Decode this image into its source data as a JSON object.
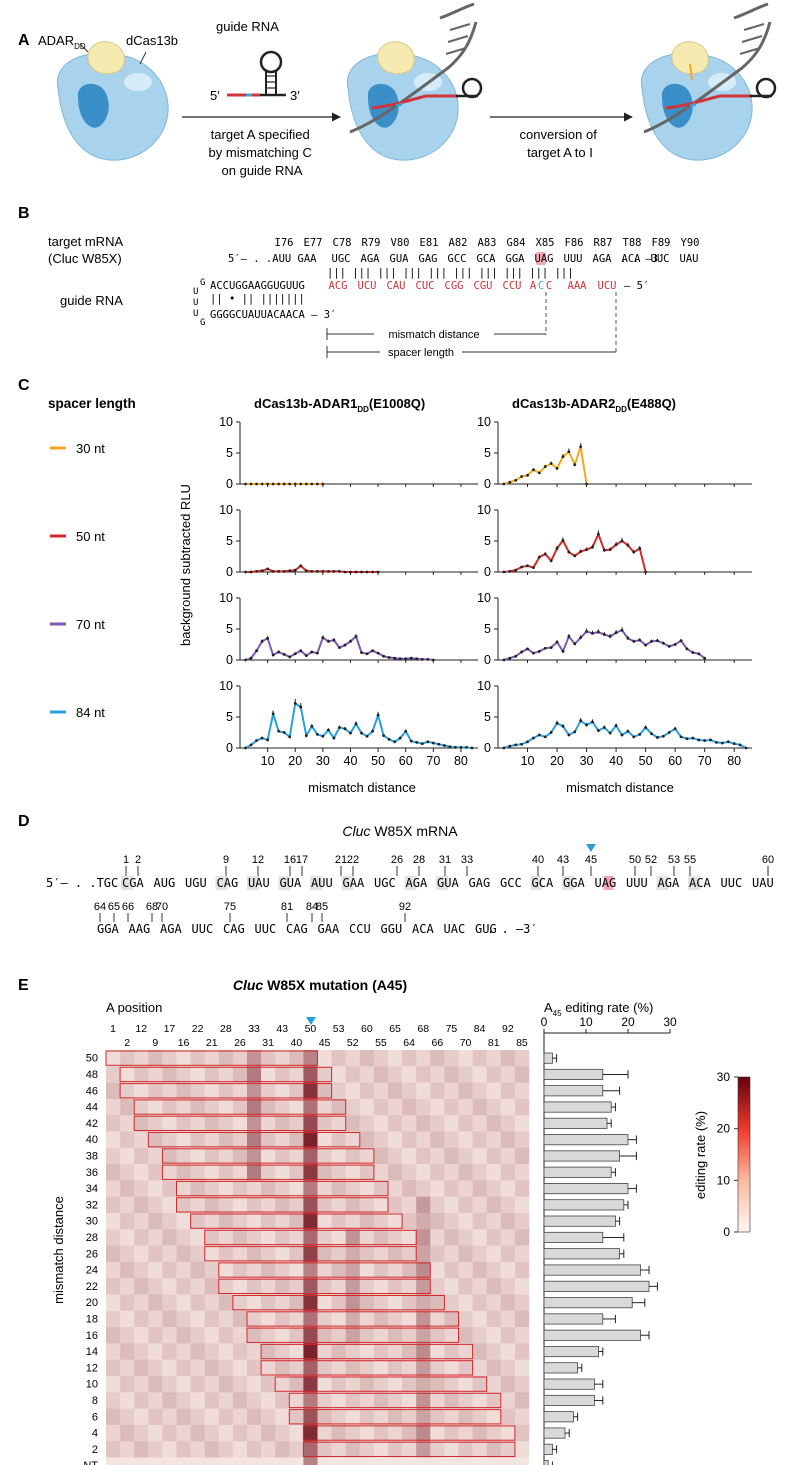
{
  "panels": {
    "A": "A",
    "B": "B",
    "C": "C",
    "D": "D",
    "E": "E"
  },
  "panel_A": {
    "adar_label": "ADAR",
    "adar_sub": "DD",
    "dcas_label": "dCas13b",
    "guide_label": "guide RNA",
    "five": "5′",
    "three": "3′",
    "arrow1_lines": [
      "target A specified",
      "by mismatching C",
      "on guide RNA"
    ],
    "arrow2_lines": [
      "conversion of",
      "target A to I"
    ],
    "colors": {
      "cas": "#a9d3ec",
      "cas_dark": "#3a8fc9",
      "adar": "#f7eab0",
      "rna": "#555555",
      "guide_red": "#d0343a",
      "guide_blue": "#3aa1d9"
    }
  },
  "panel_B": {
    "target_label": "target mRNA",
    "target_sub": "(Cluc W85X)",
    "guide_label": "guide RNA",
    "codon_labels": [
      "I76",
      "E77",
      "C78",
      "R79",
      "V80",
      "E81",
      "A82",
      "A83",
      "G84",
      "X85",
      "F86",
      "R87",
      "T88",
      "F89",
      "Y90"
    ],
    "mrna_prefix": "5′– . .AUU GAA",
    "mrna_codons": [
      "UGC",
      "AGA",
      "GUA",
      "GAG",
      "GCC",
      "GCA",
      "GGA",
      "UAG",
      "UUU",
      "AGA",
      "ACA",
      "UUC",
      "UAU"
    ],
    "mrna_suffix": ". . –3′",
    "pairs": "||| ||| ||| ||| ||| ||| ||| ||| ||| |||",
    "guide_black": "ACCUGGAAGGUGUUG",
    "guide_red_codons": [
      "ACG",
      "UCU",
      "CAU",
      "CUC",
      "CGG",
      "CGU",
      "CCU"
    ],
    "guide_mis": [
      "A",
      "C",
      "C"
    ],
    "guide_tail": [
      "AAA",
      "UCU"
    ],
    "guide_end": "– 5′",
    "hairpin_top": "UUG",
    "hairpin_mid": "|| • || |||||||",
    "hairpin_bottom": "GGGGCUAUUACAACA – 3′",
    "loop_letters": [
      "U",
      "G",
      "U",
      "U",
      "G"
    ],
    "mismatch_distance": "mismatch distance",
    "spacer_length": "spacer length"
  },
  "panel_C": {
    "legend_title": "spacer length",
    "legend": [
      {
        "label": "30 nt",
        "color": "#f4a81d"
      },
      {
        "label": "50 nt",
        "color": "#d42a2a"
      },
      {
        "label": "70 nt",
        "color": "#7a5ab0"
      },
      {
        "label": "84 nt",
        "color": "#29a0d9"
      }
    ],
    "title_left": "dCas13b-ADAR1",
    "title_left_sub": "DD",
    "title_left_mut": "(E1008Q)",
    "title_right": "dCas13b-ADAR2",
    "title_right_sub": "DD",
    "title_right_mut": "(E488Q)",
    "ylabel": "background subtracted RLU",
    "xlabel": "mismatch distance"
  },
  "chart_data": [
    {
      "type": "line",
      "title": "dCas13b-ADAR1DD(E1008Q) 30 nt",
      "x": [
        2,
        4,
        6,
        8,
        10,
        12,
        14,
        16,
        18,
        20,
        22,
        24,
        26,
        28,
        30
      ],
      "series": [
        {
          "name": "30 nt",
          "values": [
            0,
            0,
            0,
            0,
            0,
            0,
            0,
            0,
            0,
            0,
            0,
            0,
            0,
            0,
            0
          ]
        }
      ],
      "ylim": [
        0,
        10
      ],
      "yticks": [
        0,
        5,
        10
      ]
    },
    {
      "type": "line",
      "title": "dCas13b-ADAR2DD(E488Q) 30 nt",
      "x": [
        2,
        4,
        6,
        8,
        10,
        12,
        14,
        16,
        18,
        20,
        22,
        24,
        26,
        28,
        30
      ],
      "series": [
        {
          "name": "30 nt",
          "values": [
            0,
            0.3,
            0.6,
            1.2,
            1.4,
            2.3,
            1.8,
            2.8,
            3.3,
            2.5,
            4.4,
            5.2,
            3.1,
            6.0,
            0
          ]
        }
      ],
      "ylim": [
        0,
        10
      ],
      "yticks": [
        0,
        5,
        10
      ]
    },
    {
      "type": "line",
      "title": "dCas13b-ADAR1DD(E1008Q) 50 nt",
      "x": [
        2,
        4,
        6,
        8,
        10,
        12,
        14,
        16,
        18,
        20,
        22,
        24,
        26,
        28,
        30,
        32,
        34,
        36,
        38,
        40,
        42,
        44,
        46,
        48,
        50
      ],
      "series": [
        {
          "name": "50 nt",
          "values": [
            0,
            0,
            0.1,
            0.2,
            0.5,
            0.1,
            0.1,
            0.1,
            0.2,
            0.3,
            1.0,
            0.2,
            0.1,
            0.1,
            0.1,
            0.1,
            0.1,
            0.1,
            0,
            0,
            0,
            0,
            0,
            0,
            0
          ]
        }
      ],
      "ylim": [
        0,
        10
      ],
      "yticks": [
        0,
        5,
        10
      ]
    },
    {
      "type": "line",
      "title": "dCas13b-ADAR2DD(E488Q) 50 nt",
      "x": [
        2,
        4,
        6,
        8,
        10,
        12,
        14,
        16,
        18,
        20,
        22,
        24,
        26,
        28,
        30,
        32,
        34,
        36,
        38,
        40,
        42,
        44,
        46,
        48,
        50
      ],
      "series": [
        {
          "name": "50 nt",
          "values": [
            0,
            0.1,
            0.3,
            0.8,
            1.0,
            0.7,
            2.4,
            2.9,
            1.8,
            3.8,
            5.1,
            3.2,
            2.6,
            3.3,
            3.6,
            4.0,
            6.1,
            3.5,
            3.6,
            4.4,
            5.0,
            4.3,
            3.2,
            3.8,
            0
          ]
        }
      ],
      "ylim": [
        0,
        10
      ],
      "yticks": [
        0,
        5,
        10
      ]
    },
    {
      "type": "line",
      "title": "dCas13b-ADAR1DD(E1008Q) 70 nt",
      "x": [
        2,
        4,
        6,
        8,
        10,
        12,
        14,
        16,
        18,
        20,
        22,
        24,
        26,
        28,
        30,
        32,
        34,
        36,
        38,
        40,
        42,
        44,
        46,
        48,
        50,
        52,
        54,
        56,
        58,
        60,
        62,
        64,
        66,
        68,
        70
      ],
      "series": [
        {
          "name": "70 nt",
          "values": [
            0,
            0.3,
            1.5,
            3.0,
            3.5,
            0.8,
            1.3,
            0.9,
            0.5,
            1.0,
            1.5,
            0.7,
            1.3,
            1.1,
            3.6,
            3.0,
            3.2,
            2.0,
            2.4,
            3.0,
            3.8,
            1.2,
            1.0,
            1.5,
            1.1,
            0.6,
            0.4,
            0.3,
            0.2,
            0.2,
            0.3,
            0.2,
            0.1,
            0.1,
            0
          ]
        }
      ],
      "ylim": [
        0,
        10
      ],
      "yticks": [
        0,
        5,
        10
      ]
    },
    {
      "type": "line",
      "title": "dCas13b-ADAR2DD(E488Q) 70 nt",
      "x": [
        2,
        4,
        6,
        8,
        10,
        12,
        14,
        16,
        18,
        20,
        22,
        24,
        26,
        28,
        30,
        32,
        34,
        36,
        38,
        40,
        42,
        44,
        46,
        48,
        50,
        52,
        54,
        56,
        58,
        60,
        62,
        64,
        66,
        68,
        70
      ],
      "series": [
        {
          "name": "70 nt",
          "values": [
            0,
            0.3,
            0.6,
            1.3,
            1.8,
            1.1,
            1.4,
            1.9,
            2.0,
            2.9,
            1.4,
            3.8,
            2.6,
            3.6,
            4.6,
            4.3,
            4.5,
            4.1,
            3.8,
            4.4,
            4.8,
            3.5,
            3.0,
            3.2,
            2.4,
            3.0,
            3.1,
            2.7,
            2.2,
            2.5,
            3.1,
            1.8,
            1.2,
            1.0,
            0.3
          ]
        }
      ],
      "ylim": [
        0,
        10
      ],
      "yticks": [
        0,
        5,
        10
      ]
    },
    {
      "type": "line",
      "title": "dCas13b-ADAR1DD(E1008Q) 84 nt",
      "x": [
        2,
        4,
        6,
        8,
        10,
        12,
        14,
        16,
        18,
        20,
        22,
        24,
        26,
        28,
        30,
        32,
        34,
        36,
        38,
        40,
        42,
        44,
        46,
        48,
        50,
        52,
        54,
        56,
        58,
        60,
        62,
        64,
        66,
        68,
        70,
        72,
        74,
        76,
        78,
        80,
        82,
        84
      ],
      "series": [
        {
          "name": "84 nt",
          "values": [
            0,
            0.5,
            1.2,
            1.6,
            1.3,
            5.5,
            2.7,
            2.5,
            1.8,
            7.2,
            6.6,
            2.0,
            3.5,
            2.2,
            1.9,
            2.9,
            1.6,
            3.3,
            3.1,
            2.4,
            3.9,
            2.4,
            1.9,
            2.7,
            5.3,
            2.0,
            1.4,
            1.0,
            1.6,
            2.7,
            1.1,
            0.9,
            0.7,
            1.0,
            0.8,
            0.6,
            0.4,
            0.2,
            0.1,
            0.1,
            0.1,
            0
          ]
        }
      ],
      "ylim": [
        0,
        10
      ],
      "yticks": [
        0,
        5,
        10
      ]
    },
    {
      "type": "line",
      "title": "dCas13b-ADAR2DD(E488Q) 84 nt",
      "x": [
        2,
        4,
        6,
        8,
        10,
        12,
        14,
        16,
        18,
        20,
        22,
        24,
        26,
        28,
        30,
        32,
        34,
        36,
        38,
        40,
        42,
        44,
        46,
        48,
        50,
        52,
        54,
        56,
        58,
        60,
        62,
        64,
        66,
        68,
        70,
        72,
        74,
        76,
        78,
        80,
        82,
        84
      ],
      "series": [
        {
          "name": "84 nt",
          "values": [
            0,
            0.3,
            0.5,
            0.6,
            1.0,
            1.6,
            2.1,
            1.8,
            2.5,
            4.0,
            3.5,
            2.1,
            2.6,
            4.4,
            3.7,
            4.2,
            2.8,
            3.3,
            2.4,
            3.6,
            2.1,
            2.7,
            1.8,
            2.2,
            3.3,
            2.3,
            1.7,
            1.9,
            2.5,
            3.1,
            1.8,
            1.5,
            1.6,
            1.3,
            1.2,
            1.3,
            0.9,
            0.8,
            1.0,
            0.7,
            0.5,
            0
          ]
        }
      ],
      "ylim": [
        0,
        10
      ],
      "yticks": [
        0,
        5,
        10
      ]
    },
    {
      "type": "heatmap",
      "title": "Cluc W85X mutation (A45)",
      "xlabel": "A position",
      "ylabel": "mismatch distance",
      "x": [
        "1",
        "2",
        "9",
        "12",
        "16",
        "17",
        "21",
        "22",
        "26",
        "28",
        "31",
        "33",
        "40",
        "43",
        "45",
        "50",
        "52",
        "53",
        "55",
        "60",
        "64",
        "65",
        "66",
        "68",
        "70",
        "75",
        "81",
        "84",
        "85",
        "92"
      ],
      "y": [
        "50",
        "48",
        "46",
        "44",
        "42",
        "40",
        "38",
        "36",
        "34",
        "32",
        "30",
        "28",
        "26",
        "24",
        "22",
        "20",
        "18",
        "16",
        "14",
        "12",
        "10",
        "8",
        "6",
        "4",
        "2",
        "NT"
      ],
      "colorbar": {
        "label": "editing rate (%)",
        "min": 0,
        "max": 30,
        "ticks": [
          0,
          10,
          20,
          30
        ]
      }
    },
    {
      "type": "bar",
      "title": "A45 editing rate (%)",
      "categories": [
        "50",
        "48",
        "46",
        "44",
        "42",
        "40",
        "38",
        "36",
        "34",
        "32",
        "30",
        "28",
        "26",
        "24",
        "22",
        "20",
        "18",
        "16",
        "14",
        "12",
        "10",
        "8",
        "6",
        "4",
        "2",
        "NT"
      ],
      "values": [
        2,
        14,
        14,
        16,
        15,
        20,
        18,
        16,
        20,
        19,
        17,
        14,
        18,
        23,
        25,
        21,
        14,
        23,
        13,
        8,
        12,
        12,
        7,
        5,
        2,
        1
      ],
      "errors": [
        1,
        6,
        4,
        1,
        1,
        2,
        4,
        1,
        2,
        1,
        1,
        5,
        1,
        2,
        2,
        3,
        3,
        2,
        1,
        1,
        2,
        2,
        1,
        1,
        1,
        1
      ],
      "xlim": [
        0,
        30
      ],
      "xticks": [
        0,
        10,
        20,
        30
      ]
    }
  ],
  "panel_D": {
    "title_italic": "Cluc",
    "title_rest": " W85X mRNA",
    "row1_prefix": "5′– . .TGC",
    "row1_codons": [
      "CGA",
      "AUG",
      "UGU",
      "CAG",
      "UAU",
      "GUA",
      "AUU",
      "GAA",
      "UGC",
      "AGA",
      "GUA",
      "GAG",
      "GCC",
      "GCA",
      "GGA",
      "UAG",
      "UUU",
      "AGA",
      "ACA",
      "UUC",
      "UAU"
    ],
    "row1_marks": [
      "1",
      "2",
      "9",
      "12",
      "16",
      "17",
      "21",
      "22",
      "26",
      "28",
      "31",
      "33",
      "40",
      "43",
      "45",
      "50",
      "52",
      "53",
      "55",
      "60"
    ],
    "row2_codons": [
      "GGA",
      "AAG",
      "AGA",
      "UUC",
      "CAG",
      "UUC",
      "CAG",
      "GAA",
      "CCU",
      "GGU",
      "ACA",
      "UAC",
      "GUG"
    ],
    "row2_suffix": ". . –3′",
    "row2_marks": [
      "64",
      "65",
      "66",
      "68",
      "70",
      "75",
      "81",
      "84",
      "85",
      "92"
    ]
  },
  "panel_E": {
    "title_italic": "Cluc",
    "title_rest": " W85X mutation (A45)",
    "a_position": "A position",
    "top_row1": [
      "1",
      "12",
      "17",
      "22",
      "28",
      "33",
      "43",
      "50",
      "53",
      "60",
      "65",
      "68",
      "75",
      "84",
      "92"
    ],
    "top_row2": [
      "2",
      "9",
      "16",
      "21",
      "26",
      "31",
      "40",
      "45",
      "52",
      "55",
      "64",
      "66",
      "70",
      "81",
      "85"
    ],
    "bar_title": "A",
    "bar_title_sub": "45",
    "bar_title_rest": " editing rate (%)"
  }
}
